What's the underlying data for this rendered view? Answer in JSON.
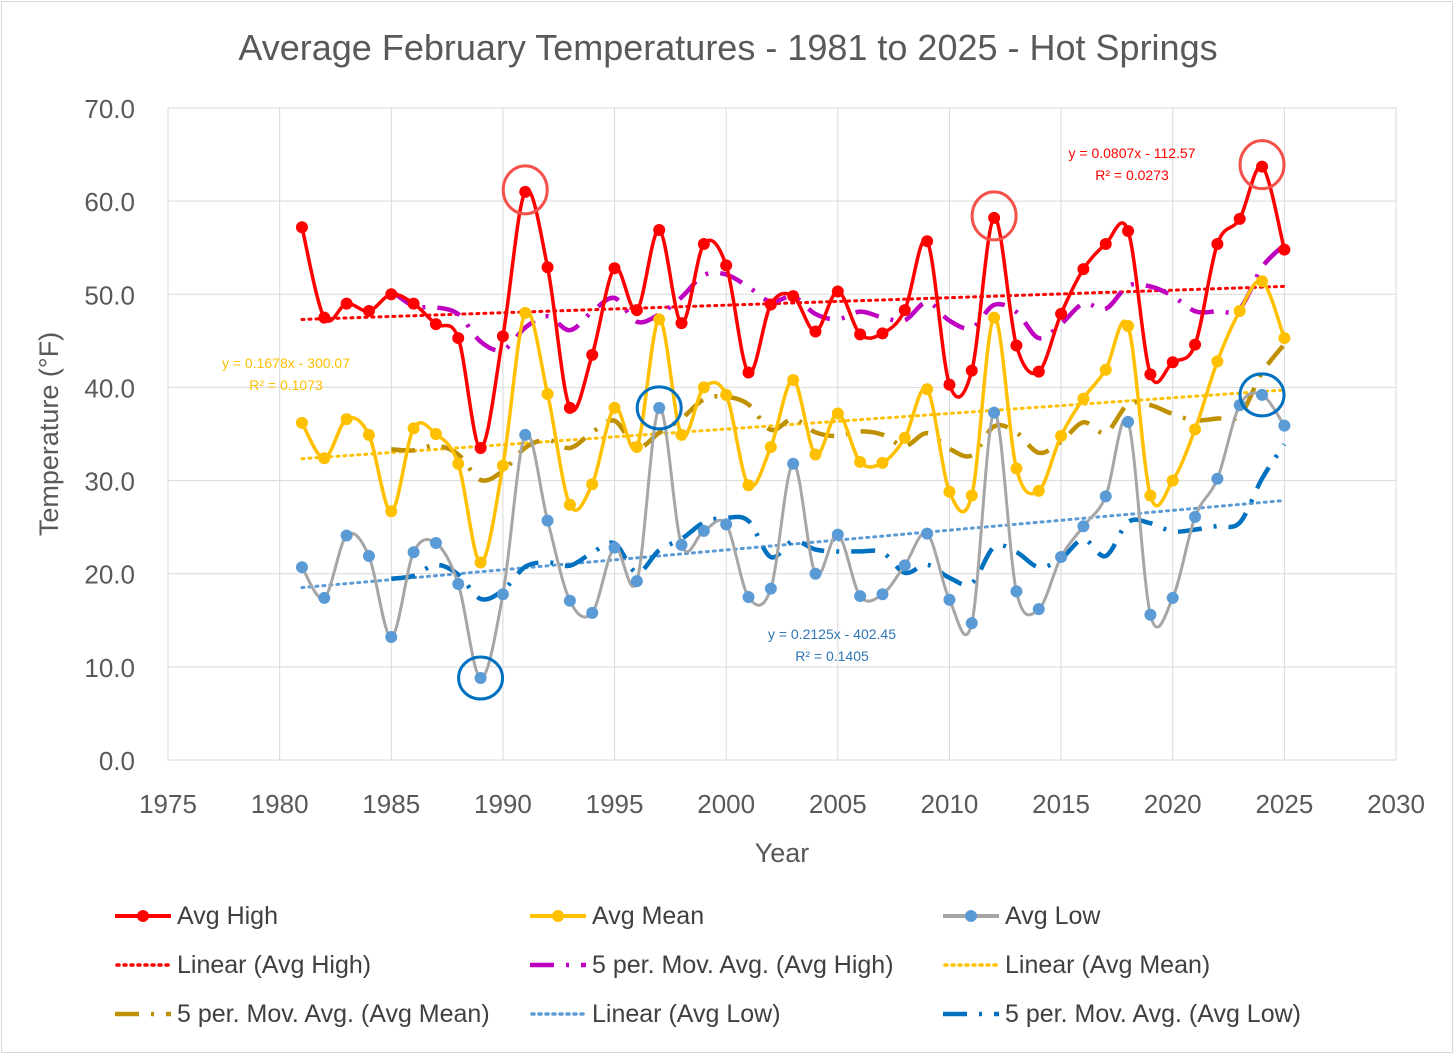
{
  "chart_data": {
    "type": "line",
    "title": "Average February Temperatures - 1981 to 2025 - Hot Springs",
    "xlabel": "Year",
    "ylabel": "Temperature (°F)",
    "xlim": [
      1975,
      2030
    ],
    "ylim": [
      0,
      70
    ],
    "x_ticks": [
      "1975",
      "1980",
      "1985",
      "1990",
      "1995",
      "2000",
      "2005",
      "2010",
      "2015",
      "2020",
      "2025",
      "2030"
    ],
    "y_ticks": [
      "0.0",
      "10.0",
      "20.0",
      "30.0",
      "40.0",
      "50.0",
      "60.0",
      "70.0"
    ],
    "grid": true,
    "legend_position": "bottom",
    "years": [
      1981,
      1982,
      1983,
      1984,
      1985,
      1986,
      1987,
      1988,
      1989,
      1990,
      1991,
      1992,
      1993,
      1994,
      1995,
      1996,
      1997,
      1998,
      1999,
      2000,
      2001,
      2002,
      2003,
      2004,
      2005,
      2006,
      2007,
      2008,
      2009,
      2010,
      2011,
      2012,
      2013,
      2014,
      2015,
      2016,
      2017,
      2018,
      2019,
      2020,
      2021,
      2022,
      2023,
      2024,
      2025
    ],
    "series": [
      {
        "name": "Avg High",
        "color": "#ff0000",
        "values": [
          57.2,
          47.5,
          49.0,
          48.2,
          50.0,
          49.0,
          46.8,
          45.3,
          33.5,
          45.5,
          61.0,
          52.9,
          37.8,
          43.5,
          52.8,
          48.3,
          56.9,
          46.9,
          55.4,
          53.1,
          41.6,
          48.9,
          49.8,
          46.0,
          50.3,
          45.7,
          45.8,
          48.3,
          55.7,
          40.3,
          41.8,
          58.2,
          44.5,
          41.7,
          47.9,
          52.7,
          55.4,
          56.8,
          41.4,
          42.7,
          44.6,
          55.4,
          58.1,
          63.7,
          54.8
        ]
      },
      {
        "name": "Avg Mean",
        "color": "#ffc000",
        "values": [
          36.2,
          32.4,
          36.6,
          34.9,
          26.7,
          35.6,
          35.0,
          31.8,
          21.2,
          31.6,
          48.0,
          39.3,
          27.4,
          29.6,
          37.8,
          33.6,
          47.3,
          34.9,
          40.0,
          39.2,
          29.5,
          33.6,
          40.8,
          32.8,
          37.2,
          32.0,
          31.9,
          34.6,
          39.8,
          28.8,
          28.4,
          47.5,
          31.3,
          28.9,
          34.8,
          38.8,
          41.9,
          46.6,
          28.4,
          30.0,
          35.5,
          42.8,
          48.2,
          51.4,
          45.3
        ]
      },
      {
        "name": "Avg Low",
        "color": "#a6a6a6",
        "values": [
          20.7,
          17.4,
          24.1,
          21.9,
          13.2,
          22.3,
          23.3,
          18.9,
          8.8,
          17.8,
          34.9,
          25.7,
          17.1,
          15.8,
          22.8,
          19.2,
          37.8,
          23.1,
          24.6,
          25.3,
          17.5,
          18.4,
          31.8,
          20.0,
          24.2,
          17.6,
          17.8,
          20.9,
          24.3,
          17.2,
          14.7,
          37.3,
          18.1,
          16.2,
          21.8,
          25.1,
          28.3,
          36.3,
          15.6,
          17.4,
          26.1,
          30.2,
          38.1,
          39.2,
          35.9
        ]
      }
    ],
    "trendlines": [
      {
        "name": "Linear (Avg High)",
        "type": "linear",
        "slope": 0.0807,
        "intercept": -112.57,
        "color": "#ff0000"
      },
      {
        "name": "Linear (Avg Mean)",
        "type": "linear",
        "slope": 0.1678,
        "intercept": -300.07,
        "color": "#ffc000"
      },
      {
        "name": "Linear (Avg Low)",
        "type": "linear",
        "slope": 0.2125,
        "intercept": -402.45,
        "color": "#5b9bd5"
      },
      {
        "name": "5 per. Mov. Avg. (Avg High)",
        "type": "moving_average",
        "period": 5,
        "source": "Avg High",
        "color": "#c000c0"
      },
      {
        "name": "5 per. Mov. Avg. (Avg Mean)",
        "type": "moving_average",
        "period": 5,
        "source": "Avg Mean",
        "color": "#bf9000"
      },
      {
        "name": "5 per. Mov. Avg. (Avg Low)",
        "type": "moving_average",
        "period": 5,
        "source": "Avg Low",
        "color": "#0070c0"
      }
    ],
    "annotations": [
      {
        "line1": "y = 0.0807x - 112.57",
        "line2": "R² = 0.0273",
        "color": "#ff0000"
      },
      {
        "line1": "y = 0.1678x - 300.07",
        "line2": "R² = 0.1073",
        "color": "#ffc000"
      },
      {
        "line1": "y = 0.2125x - 402.45",
        "line2": "R² = 0.1405",
        "color": "#2e75b6"
      }
    ],
    "highlighted_points": [
      {
        "series": "Avg High",
        "year": 1991,
        "value": 61.0
      },
      {
        "series": "Avg High",
        "year": 2012,
        "value": 58.2
      },
      {
        "series": "Avg High",
        "year": 2024,
        "value": 63.7
      },
      {
        "series": "Avg Low",
        "year": 1989,
        "value": 8.8
      },
      {
        "series": "Avg Low",
        "year": 1997,
        "value": 37.8
      },
      {
        "series": "Avg Low",
        "year": 2024,
        "value": 39.2
      }
    ],
    "legend": [
      "Avg High",
      "Avg Mean",
      "Avg Low",
      "Linear (Avg High)",
      "5 per. Mov. Avg. (Avg High)",
      "Linear (Avg Mean)",
      "5 per. Mov. Avg. (Avg Mean)",
      "Linear (Avg Low)",
      "5 per. Mov. Avg. (Avg Low)"
    ]
  }
}
